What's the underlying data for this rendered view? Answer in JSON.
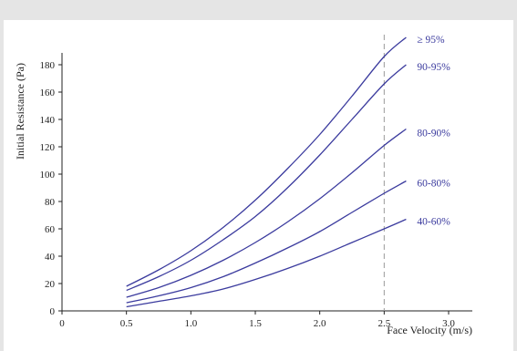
{
  "chart_data": {
    "type": "line",
    "title": "",
    "xlabel": "Face Velocity (m/s)",
    "ylabel": "Initial Resistance (Pa)",
    "xlim": [
      0,
      3.0
    ],
    "ylim": [
      0,
      190
    ],
    "xticks": [
      {
        "value": 0,
        "label": "0"
      },
      {
        "value": 0.5,
        "label": "0.5"
      },
      {
        "value": 1.0,
        "label": "1.0"
      },
      {
        "value": 1.5,
        "label": "1.5"
      },
      {
        "value": 2.0,
        "label": "2.0"
      },
      {
        "value": 2.5,
        "label": "2.5"
      },
      {
        "value": 3.0,
        "label": "3.0"
      }
    ],
    "yticks": [
      {
        "value": 0,
        "label": "0"
      },
      {
        "value": 20,
        "label": "20"
      },
      {
        "value": 40,
        "label": "40"
      },
      {
        "value": 60,
        "label": "60"
      },
      {
        "value": 80,
        "label": "80"
      },
      {
        "value": 100,
        "label": "100"
      },
      {
        "value": 120,
        "label": "120"
      },
      {
        "value": 140,
        "label": "140"
      },
      {
        "value": 160,
        "label": "160"
      },
      {
        "value": 180,
        "label": "180"
      }
    ],
    "reference_line": {
      "x": 2.5,
      "style": "dashed",
      "color": "#999999"
    },
    "grid": false,
    "line_color": "#3b3b9e",
    "x": [
      0.5,
      0.75,
      1.0,
      1.25,
      1.5,
      1.75,
      2.0,
      2.25,
      2.5,
      2.67
    ],
    "series": [
      {
        "name": "≥ 95%",
        "values": [
          18,
          30,
          44,
          61,
          81,
          104,
          129,
          157,
          186,
          200
        ]
      },
      {
        "name": "90-95%",
        "values": [
          15,
          25,
          37,
          52,
          69,
          90,
          114,
          140,
          166,
          180
        ]
      },
      {
        "name": "80-90%",
        "values": [
          10,
          17,
          26,
          37,
          50,
          65,
          82,
          101,
          121,
          133
        ]
      },
      {
        "name": "60-80%",
        "values": [
          6,
          11,
          17,
          25,
          35,
          46,
          58,
          72,
          86,
          95
        ]
      },
      {
        "name": "40-60%",
        "values": [
          3,
          7,
          11,
          16,
          23,
          31,
          40,
          50,
          60,
          67
        ]
      }
    ]
  }
}
